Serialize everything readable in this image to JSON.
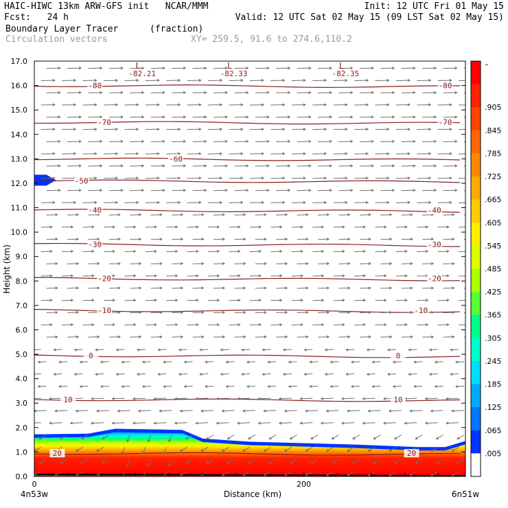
{
  "header": {
    "line1_left": "HAIC-HIWC 13km ARW-GFS init   NCAR/MMM",
    "line1_right": "Init: 12 UTC Fri 01 May 15",
    "line2_left": "Fcst:   24 h",
    "line2_right": "Valid: 12 UTC Sat 02 May 15 (09 LST Sat 02 May 15)",
    "line3_left": "Boundary Layer Tracer",
    "line3_units": "(fraction)",
    "line4_left": "Circulation vectors",
    "line4_xy": "XY= 259.5, 91.6 to 274.6,110.2"
  },
  "chart_data": {
    "type": "heatmap",
    "ylabel": "Height (km)",
    "xlabel": "Distance (km)",
    "ylim": [
      0,
      17
    ],
    "xlim": [
      0,
      320
    ],
    "y_ticks": [
      "0.0",
      "1.0",
      "2.0",
      "3.0",
      "4.0",
      "5.0",
      "6.0",
      "7.0",
      "8.0",
      "9.0",
      "10.0",
      "11.0",
      "12.0",
      "13.0",
      "14.0",
      "15.0",
      "16.0",
      "17.0"
    ],
    "x_ticks": [
      {
        "value": 0,
        "label": "0"
      },
      {
        "value": 200,
        "label": "200"
      }
    ],
    "x_end_labels": {
      "left": "4n53w",
      "right": "6n51w"
    },
    "colorbar": {
      "labels": [
        "–",
        ".905",
        ".845",
        ".785",
        ".725",
        ".665",
        ".605",
        ".545",
        ".485",
        ".425",
        ".365",
        ".305",
        ".245",
        ".185",
        ".125",
        ".065",
        ".005"
      ],
      "colors": [
        "#ff0000",
        "#ff2200",
        "#ff4400",
        "#ff6600",
        "#ff8800",
        "#ffaa00",
        "#ffcc00",
        "#ffee00",
        "#ddff00",
        "#aaff00",
        "#55ff33",
        "#00ff88",
        "#00ffcc",
        "#00ddff",
        "#00aaff",
        "#0077ff",
        "#0033ff",
        "#ffffff"
      ]
    },
    "tracer_top_km": [
      {
        "x": 0,
        "y": 1.72
      },
      {
        "x": 40,
        "y": 1.75
      },
      {
        "x": 60,
        "y": 1.95
      },
      {
        "x": 110,
        "y": 1.9
      },
      {
        "x": 125,
        "y": 1.55
      },
      {
        "x": 160,
        "y": 1.42
      },
      {
        "x": 240,
        "y": 1.3
      },
      {
        "x": 285,
        "y": 1.2
      },
      {
        "x": 305,
        "y": 1.2
      },
      {
        "x": 320,
        "y": 1.45
      }
    ],
    "tracer_patch_upper": {
      "x0": 0,
      "x1": 16,
      "y0": 11.9,
      "y1": 12.35
    },
    "temperature_contours": [
      {
        "label": "-80",
        "y_km": 16.0,
        "labels_at": [
          {
            "x": 45,
            "label": "-80"
          },
          {
            "x": 305,
            "label": "-80"
          }
        ]
      },
      {
        "label": "-70",
        "y_km": 14.5,
        "labels_at": [
          {
            "x": 52,
            "label": "-70"
          },
          {
            "x": 305,
            "label": "-70"
          }
        ]
      },
      {
        "label": "-60",
        "y_km": 13.0,
        "labels_at": [
          {
            "x": 105,
            "label": "-60"
          }
        ]
      },
      {
        "label": "-50",
        "y_km": 12.1,
        "labels_at": [
          {
            "x": 35,
            "label": "-50"
          }
        ]
      },
      {
        "label": "-40",
        "y_km": 10.9,
        "labels_at": [
          {
            "x": 45,
            "label": "-40"
          },
          {
            "x": 297,
            "label": "-40"
          }
        ]
      },
      {
        "label": "-30",
        "y_km": 9.5,
        "labels_at": [
          {
            "x": 45,
            "label": "-30"
          },
          {
            "x": 297,
            "label": "-30"
          }
        ]
      },
      {
        "label": "-20",
        "y_km": 8.1,
        "labels_at": [
          {
            "x": 52,
            "label": "-20"
          },
          {
            "x": 297,
            "label": "-20"
          }
        ]
      },
      {
        "label": "-10",
        "y_km": 6.8,
        "labels_at": [
          {
            "x": 52,
            "label": "-10"
          },
          {
            "x": 287,
            "label": "-10"
          }
        ]
      },
      {
        "label": "0",
        "y_km": 4.95,
        "labels_at": [
          {
            "x": 42,
            "label": "0"
          },
          {
            "x": 270,
            "label": "0"
          }
        ]
      },
      {
        "label": "10",
        "y_km": 3.15,
        "labels_at": [
          {
            "x": 25,
            "label": "10"
          },
          {
            "x": 270,
            "label": "10"
          }
        ]
      },
      {
        "label": "20",
        "y_km": 0.95,
        "labels_at": [
          {
            "x": 17,
            "label": "20"
          },
          {
            "x": 280,
            "label": "20"
          }
        ]
      }
    ],
    "lows": [
      {
        "x": 77,
        "value": "-82.21"
      },
      {
        "x": 145,
        "value": "-82.33"
      },
      {
        "x": 228,
        "value": "-82.35"
      }
    ],
    "wind_vectors": [
      {
        "y_min_km": 5.5,
        "direction": "east"
      },
      {
        "y_min_km": 2.0,
        "y_max_km": 5.5,
        "direction": "west"
      },
      {
        "y_max_km": 2.0,
        "direction": "west-down"
      }
    ]
  }
}
